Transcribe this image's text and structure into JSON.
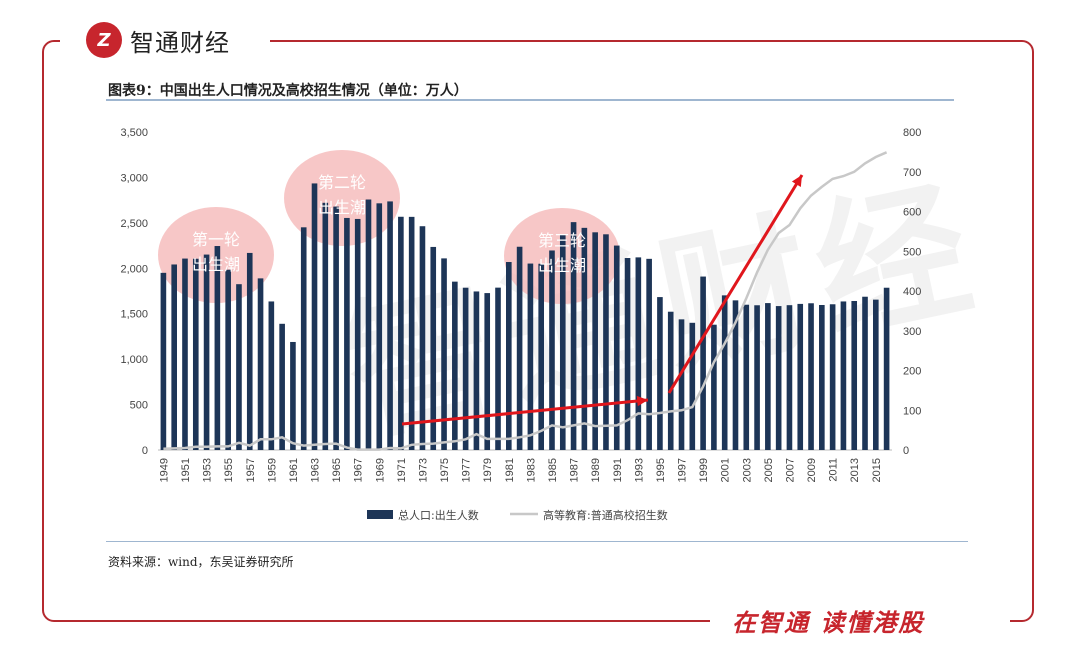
{
  "brand": {
    "logo_text": "Z",
    "name": "智通财经",
    "slogan": "在智通 读懂港股",
    "watermark": "智通财经"
  },
  "colors": {
    "accent": "#c7252d",
    "bar": "#1d3557",
    "line": "#c8c8c8",
    "arrow": "#e0161c",
    "bubble": "#f4b4b4"
  },
  "figure": {
    "title": "图表9：中国出生人口情况及高校招生情况（单位：万人）",
    "source": "资料来源：wind，东吴证券研究所"
  },
  "annotations": [
    {
      "line1": "第一轮",
      "line2": "出生潮"
    },
    {
      "line1": "第二轮",
      "line2": "出生潮"
    },
    {
      "line1": "第三轮",
      "line2": "出生潮"
    }
  ],
  "chart_data": {
    "type": "bar",
    "x": [
      1949,
      1950,
      1951,
      1952,
      1953,
      1954,
      1955,
      1956,
      1957,
      1958,
      1959,
      1960,
      1961,
      1962,
      1963,
      1964,
      1965,
      1966,
      1967,
      1968,
      1969,
      1970,
      1971,
      1972,
      1973,
      1974,
      1975,
      1976,
      1977,
      1978,
      1979,
      1980,
      1981,
      1982,
      1983,
      1984,
      1985,
      1986,
      1987,
      1988,
      1989,
      1990,
      1991,
      1992,
      1993,
      1994,
      1995,
      1996,
      1997,
      1998,
      1999,
      2000,
      2001,
      2002,
      2003,
      2004,
      2005,
      2006,
      2007,
      2008,
      2009,
      2010,
      2011,
      2012,
      2013,
      2014,
      2015,
      2016
    ],
    "tick_labels": [
      "1949",
      "1951",
      "1953",
      "1955",
      "1957",
      "1959",
      "1961",
      "1963",
      "1965",
      "1967",
      "1969",
      "1971",
      "1973",
      "1975",
      "1977",
      "1979",
      "1981",
      "1983",
      "1985",
      "1987",
      "1989",
      "1991",
      "1993",
      "1995",
      "1997",
      "1999",
      "2001",
      "2003",
      "2005",
      "2007",
      "2009",
      "2011",
      "2013",
      "2015"
    ],
    "series": [
      {
        "name": "总人口:出生人数",
        "axis": "left",
        "type": "bar",
        "values": [
          1950,
          2042,
          2107,
          2105,
          2151,
          2245,
          1984,
          1825,
          2169,
          1889,
          1635,
          1389,
          1189,
          2451,
          2934,
          2721,
          2679,
          2554,
          2543,
          2757,
          2715,
          2736,
          2567,
          2566,
          2463,
          2235,
          2109,
          1853,
          1786,
          1745,
          1727,
          1787,
          2069,
          2237,
          2052,
          2050,
          2196,
          2374,
          2508,
          2445,
          2396,
          2374,
          2250,
          2113,
          2120,
          2104,
          1683,
          1522,
          1438,
          1400,
          1909,
          1379,
          1702,
          1647,
          1599,
          1593,
          1617,
          1584,
          1594,
          1608,
          1615,
          1596,
          1604,
          1635,
          1640,
          1687,
          1655,
          1786
        ]
      },
      {
        "name": "高等教育:普通高校招生数",
        "axis": "right",
        "type": "line",
        "values": [
          3,
          4,
          5,
          8,
          8,
          9,
          9,
          18,
          11,
          27,
          27,
          32,
          17,
          11,
          13,
          15,
          16,
          6,
          1,
          1,
          1,
          5,
          4,
          13,
          15,
          16,
          19,
          22,
          27,
          40,
          28,
          28,
          28,
          32,
          37,
          48,
          62,
          57,
          62,
          67,
          60,
          61,
          62,
          75,
          92,
          90,
          93,
          97,
          100,
          108,
          160,
          221,
          268,
          321,
          382,
          447,
          504,
          546,
          566,
          608,
          640,
          662,
          682,
          689,
          700,
          721,
          737,
          749
        ]
      }
    ],
    "y_left": {
      "min": 0,
      "max": 3500,
      "ticks": [
        "0",
        "500",
        "1,000",
        "1,500",
        "2,000",
        "2,500",
        "3,000",
        "3,500"
      ]
    },
    "y_right": {
      "min": 0,
      "max": 800,
      "ticks": [
        "0",
        "100",
        "200",
        "300",
        "400",
        "500",
        "600",
        "700",
        "800"
      ]
    },
    "legend": {
      "placement": "bottom"
    }
  }
}
